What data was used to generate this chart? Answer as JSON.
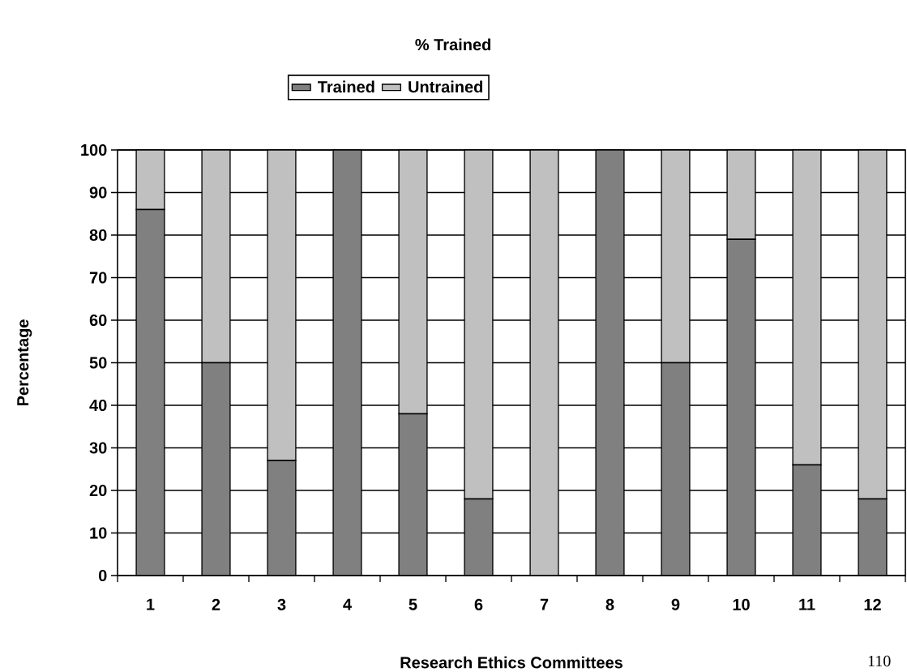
{
  "chart_data": {
    "type": "bar",
    "title": "% Trained",
    "xlabel": "Research Ethics Committees",
    "ylabel": "Percentage",
    "categories": [
      "1",
      "2",
      "3",
      "4",
      "5",
      "6",
      "7",
      "8",
      "9",
      "10",
      "11",
      "12"
    ],
    "series": [
      {
        "name": "Trained",
        "color": "#808080",
        "values": [
          86,
          50,
          27,
          100,
          38,
          18,
          0,
          100,
          50,
          79,
          26,
          18
        ]
      },
      {
        "name": "Untrained",
        "color": "#c0c0c0",
        "values": [
          14,
          50,
          73,
          0,
          62,
          82,
          100,
          0,
          50,
          21,
          74,
          82
        ]
      }
    ],
    "stacked": true,
    "ylim": [
      0,
      100
    ],
    "yticks": [
      0,
      10,
      20,
      30,
      40,
      50,
      60,
      70,
      80,
      90,
      100
    ],
    "grid": "y",
    "legend": "top",
    "annotations": [
      "110"
    ]
  }
}
